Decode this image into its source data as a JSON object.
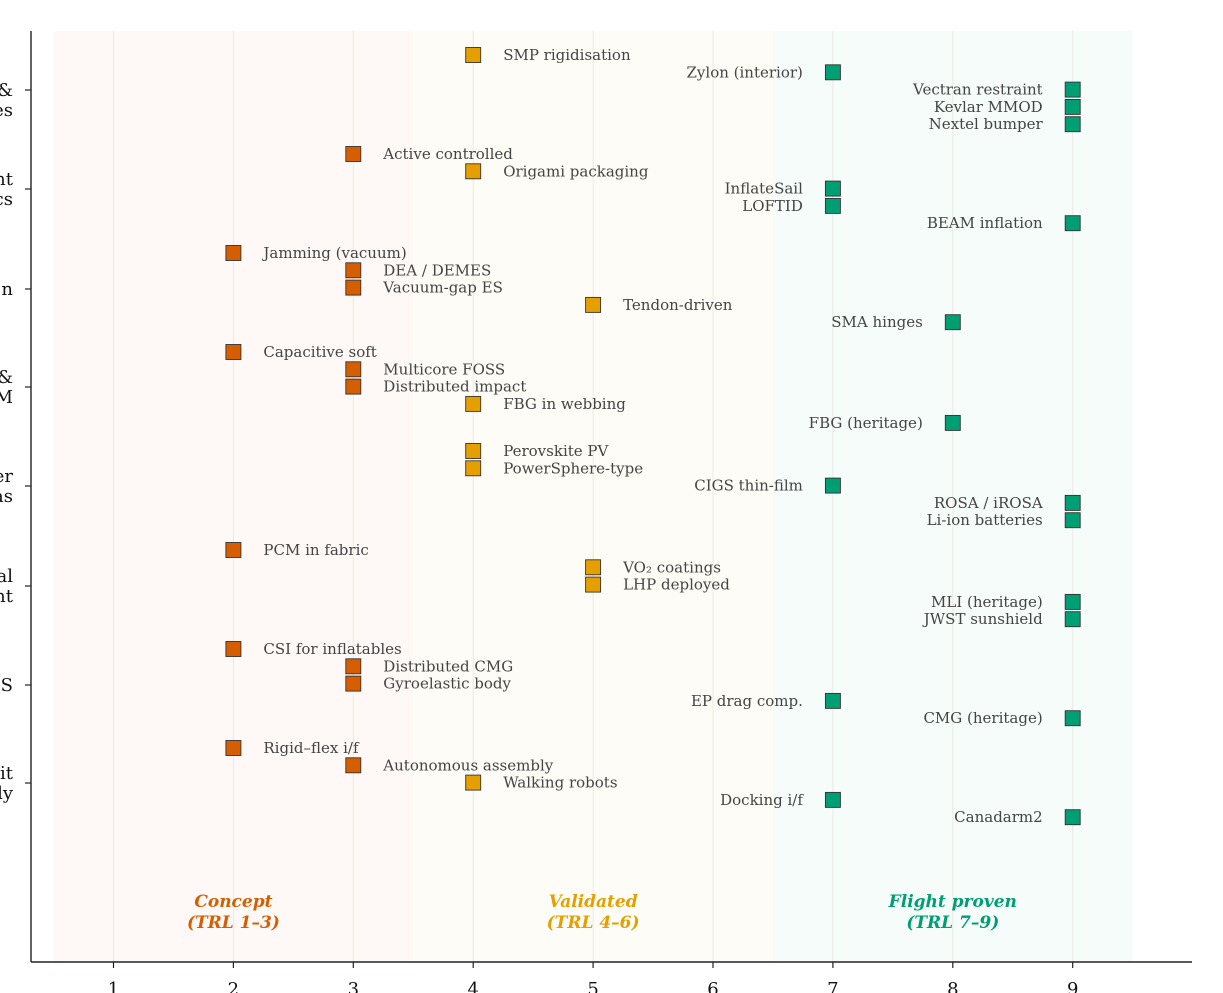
{
  "chart_data": {
    "type": "scatter",
    "x_axis": {
      "ticks": [
        1,
        2,
        3,
        4,
        5,
        6,
        7,
        8,
        9
      ],
      "range": [
        0.3,
        9.99
      ]
    },
    "categories": [
      {
        "lines": [
          "",
          "&",
          "es"
        ]
      },
      {
        "lines": [
          "nt",
          "cs"
        ]
      },
      {
        "lines": [
          "n"
        ]
      },
      {
        "lines": [
          "&",
          "M"
        ]
      },
      {
        "lines": [
          "er",
          "as"
        ]
      },
      {
        "lines": [
          "al",
          "nt"
        ]
      },
      {
        "lines": [
          "S"
        ]
      },
      {
        "lines": [
          "it",
          "ly"
        ]
      }
    ],
    "bands": [
      {
        "label_lines": [
          "Concept",
          "(TRL 1–3)"
        ],
        "range": [
          0.5,
          3.5
        ],
        "color": "#d55e00",
        "center": 2
      },
      {
        "label_lines": [
          "Validated",
          "(TRL 4–6)"
        ],
        "range": [
          3.5,
          6.5
        ],
        "color": "#e69f00",
        "center": 5
      },
      {
        "label_lines": [
          "Flight proven",
          "(TRL 7–9)"
        ],
        "range": [
          6.5,
          9.5
        ],
        "color": "#009e73",
        "center": 8
      }
    ],
    "colors": {
      "concept": "#d55e00",
      "validated": "#e69f00",
      "flight": "#009e73"
    },
    "points": [
      {
        "category": 0,
        "slot": 0,
        "trl": 4,
        "label": "SMP rigidisation"
      },
      {
        "category": 0,
        "slot": 1,
        "trl": 7,
        "label": "Zylon (interior)"
      },
      {
        "category": 0,
        "slot": 2,
        "trl": 9,
        "label": "Vectran restraint"
      },
      {
        "category": 0,
        "slot": 3,
        "trl": 9,
        "label": "Kevlar MMOD"
      },
      {
        "category": 0,
        "slot": 4,
        "trl": 9,
        "label": "Nextel bumper"
      },
      {
        "category": 1,
        "slot": 0,
        "trl": 3,
        "label": "Active controlled"
      },
      {
        "category": 1,
        "slot": 1,
        "trl": 4,
        "label": "Origami packaging"
      },
      {
        "category": 1,
        "slot": 2,
        "trl": 7,
        "label": "InflateSail"
      },
      {
        "category": 1,
        "slot": 3,
        "trl": 7,
        "label": "LOFTID"
      },
      {
        "category": 1,
        "slot": 4,
        "trl": 9,
        "label": "BEAM inflation"
      },
      {
        "category": 2,
        "slot": 0,
        "trl": 2,
        "label": "Jamming (vacuum)"
      },
      {
        "category": 2,
        "slot": 1,
        "trl": 3,
        "label": "DEA / DEMES"
      },
      {
        "category": 2,
        "slot": 2,
        "trl": 3,
        "label": "Vacuum-gap ES"
      },
      {
        "category": 2,
        "slot": 3,
        "trl": 5,
        "label": "Tendon-driven"
      },
      {
        "category": 2,
        "slot": 4,
        "trl": 8,
        "label": "SMA hinges"
      },
      {
        "category": 3,
        "slot": 0,
        "trl": 2,
        "label": "Capacitive soft"
      },
      {
        "category": 3,
        "slot": 1,
        "trl": 3,
        "label": "Multicore FOSS"
      },
      {
        "category": 3,
        "slot": 2,
        "trl": 3,
        "label": "Distributed impact"
      },
      {
        "category": 3,
        "slot": 3,
        "trl": 4,
        "label": "FBG in webbing"
      },
      {
        "category": 3,
        "slot": 4.1,
        "trl": 8,
        "label": "FBG (heritage)"
      },
      {
        "category": 4,
        "slot": 0,
        "trl": 4,
        "label": "Perovskite PV"
      },
      {
        "category": 4,
        "slot": 1,
        "trl": 4,
        "label": "PowerSphere-type"
      },
      {
        "category": 4,
        "slot": 2,
        "trl": 7,
        "label": "CIGS thin-film"
      },
      {
        "category": 4,
        "slot": 3,
        "trl": 9,
        "label": "ROSA / iROSA"
      },
      {
        "category": 4,
        "slot": 4,
        "trl": 9,
        "label": "Li-ion batteries"
      },
      {
        "category": 5,
        "slot": 0,
        "trl": 2,
        "label": "PCM in fabric"
      },
      {
        "category": 5,
        "slot": 1,
        "trl": 5,
        "label": "VO₂ coatings"
      },
      {
        "category": 5,
        "slot": 2,
        "trl": 5,
        "label": "LHP deployed"
      },
      {
        "category": 5,
        "slot": 3,
        "trl": 9,
        "label": "MLI (heritage)"
      },
      {
        "category": 5,
        "slot": 4,
        "trl": 9,
        "label": "JWST sunshield"
      },
      {
        "category": 6,
        "slot": 0,
        "trl": 2,
        "label": "CSI for inflatables"
      },
      {
        "category": 6,
        "slot": 1,
        "trl": 3,
        "label": "Distributed CMG"
      },
      {
        "category": 6,
        "slot": 2,
        "trl": 3,
        "label": "Gyroelastic body"
      },
      {
        "category": 6,
        "slot": 3,
        "trl": 7,
        "label": "EP drag comp."
      },
      {
        "category": 6,
        "slot": 4,
        "trl": 9,
        "label": "CMG (heritage)"
      },
      {
        "category": 7,
        "slot": 0,
        "trl": 2,
        "label": "Rigid–flex i/f"
      },
      {
        "category": 7,
        "slot": 1,
        "trl": 3,
        "label": "Autonomous assembly"
      },
      {
        "category": 7,
        "slot": 2,
        "trl": 4,
        "label": "Walking robots"
      },
      {
        "category": 7,
        "slot": 3,
        "trl": 7,
        "label": "Docking i/f"
      },
      {
        "category": 7,
        "slot": 4,
        "trl": 9,
        "label": "Canadarm2"
      }
    ]
  }
}
